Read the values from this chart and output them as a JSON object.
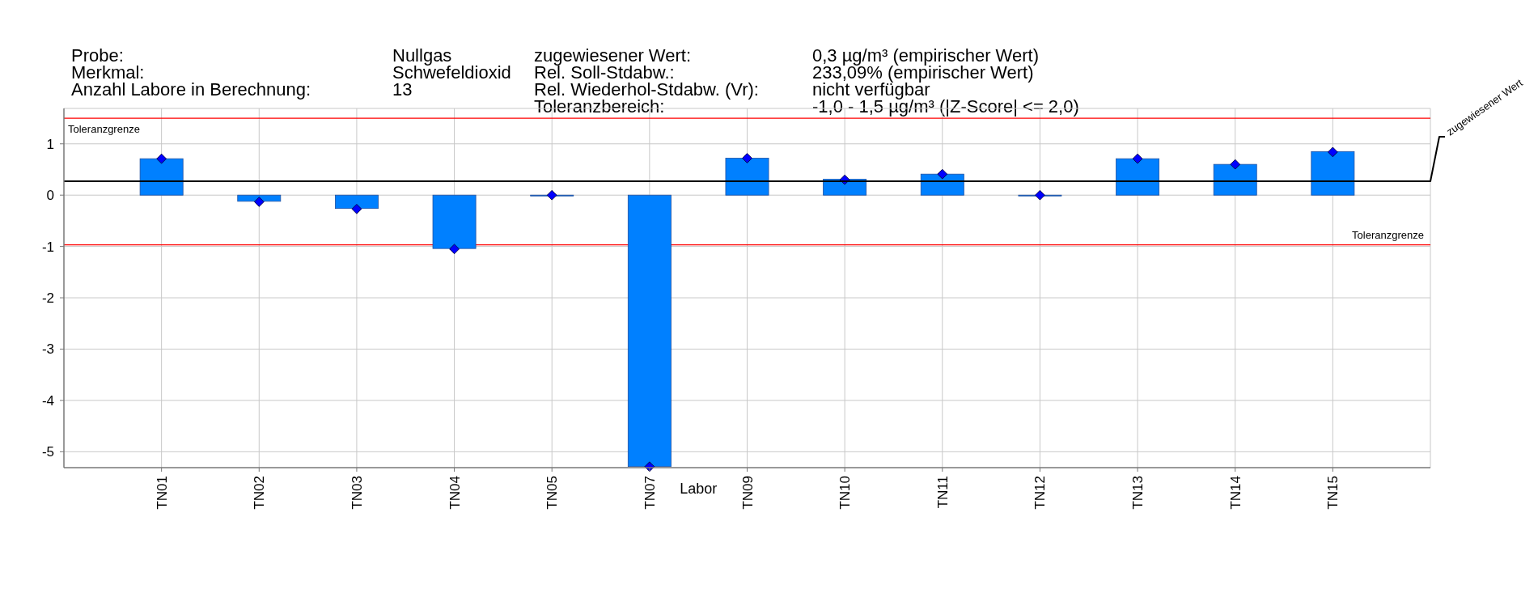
{
  "chart_data": {
    "type": "bar",
    "xlabel": "Labor",
    "categories": [
      "TN01",
      "TN02",
      "TN03",
      "TN04",
      "TN05",
      "TN07",
      "TN09",
      "TN10",
      "TN11",
      "TN12",
      "TN13",
      "TN14",
      "TN15"
    ],
    "series": [
      {
        "color": "#0080ff",
        "values": [
          0.71,
          -0.12,
          -0.26,
          -1.04,
          0,
          -5.29,
          0.72,
          0.31,
          0.41,
          0,
          0.71,
          0.6,
          0.85
        ]
      },
      {
        "type": "scatter",
        "color": "#0000ff",
        "marker": "diamond",
        "x": [
          "TN01",
          "TN02",
          "TN03",
          "TN04",
          "TN05",
          "TN07",
          "TN09",
          "TN10",
          "TN11",
          "TN12",
          "TN13",
          "TN14",
          "TN15"
        ],
        "values": [
          0.71,
          -0.13,
          -0.27,
          -1.05,
          0,
          -5.29,
          0.72,
          0.3,
          0.41,
          0,
          0.71,
          0.6,
          0.84
        ]
      }
    ],
    "ylim": [
      -5.31,
      1.69
    ],
    "yticks": [
      -5,
      -4,
      -3,
      -2,
      -1,
      0,
      1
    ],
    "grid": true,
    "ref_lines": [
      {
        "axis": "y",
        "value": 0.27,
        "label": "zugewiesener Wert",
        "color": "#000000"
      },
      {
        "axis": "y",
        "value": 1.5,
        "label": "Toleranzgrenze",
        "color": "#ff0000"
      },
      {
        "axis": "y",
        "value": -0.97,
        "label": "Toleranzgrenze",
        "color": "#ff0000"
      }
    ],
    "annotations": [
      "Probe:",
      "Nullgas",
      "zugewiesener Wert:",
      "0,3 µg/m³ (empirischer Wert)",
      "Merkmal:",
      "Schwefeldioxid",
      "Rel. Soll-Stdabw.:",
      "233,09% (empirischer Wert)",
      "Anzahl Labore in Berechnung:",
      "13",
      "Rel. Wiederhol-Stdabw. (Vr):",
      "nicht verfügbar",
      "Toleranzbereich:",
      "-1,0 - 1,5 µg/m³ (|Z-Score| <= 2,0)"
    ]
  }
}
